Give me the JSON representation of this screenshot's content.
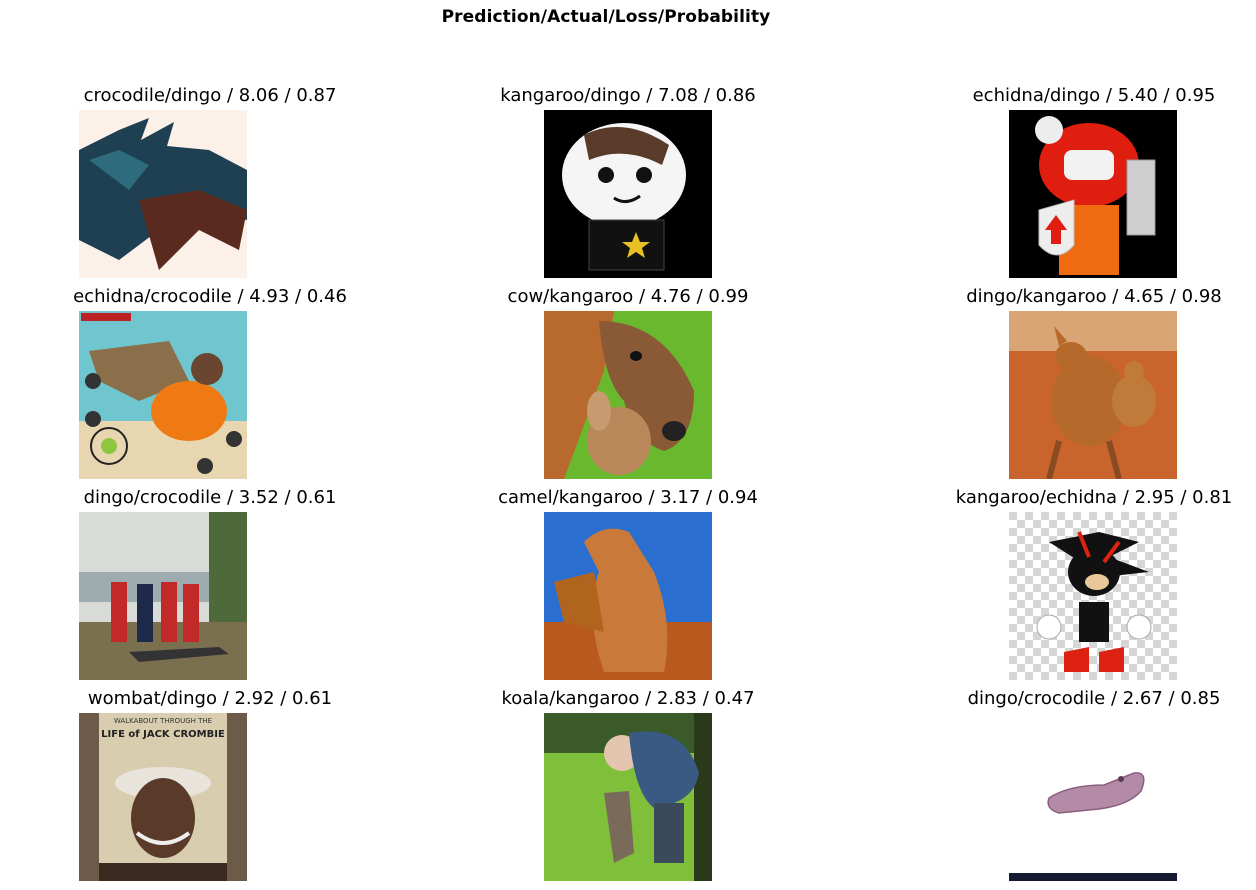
{
  "figure": {
    "title": "Prediction/Actual/Loss/Probability"
  },
  "cells": [
    {
      "label": "crocodile/dingo / 8.06 / 0.87"
    },
    {
      "label": "kangaroo/dingo / 7.08 / 0.86"
    },
    {
      "label": "echidna/dingo / 5.40 / 0.95"
    },
    {
      "label": "echidna/crocodile / 4.93 / 0.46"
    },
    {
      "label": "cow/kangaroo / 4.76 / 0.99"
    },
    {
      "label": "dingo/kangaroo / 4.65 / 0.98"
    },
    {
      "label": "dingo/crocodile / 3.52 / 0.61"
    },
    {
      "label": "camel/kangaroo / 3.17 / 0.94"
    },
    {
      "label": "kangaroo/echidna / 2.95 / 0.81"
    },
    {
      "label": "wombat/dingo / 2.92 / 0.61"
    },
    {
      "label": "koala/kangaroo / 2.83 / 0.47"
    },
    {
      "label": "dingo/crocodile / 2.67 / 0.85"
    }
  ],
  "embedded_text": {
    "poster_line1": "WALKABOUT THROUGH THE",
    "poster_line2": "LIFE of JACK CROMBIE"
  }
}
